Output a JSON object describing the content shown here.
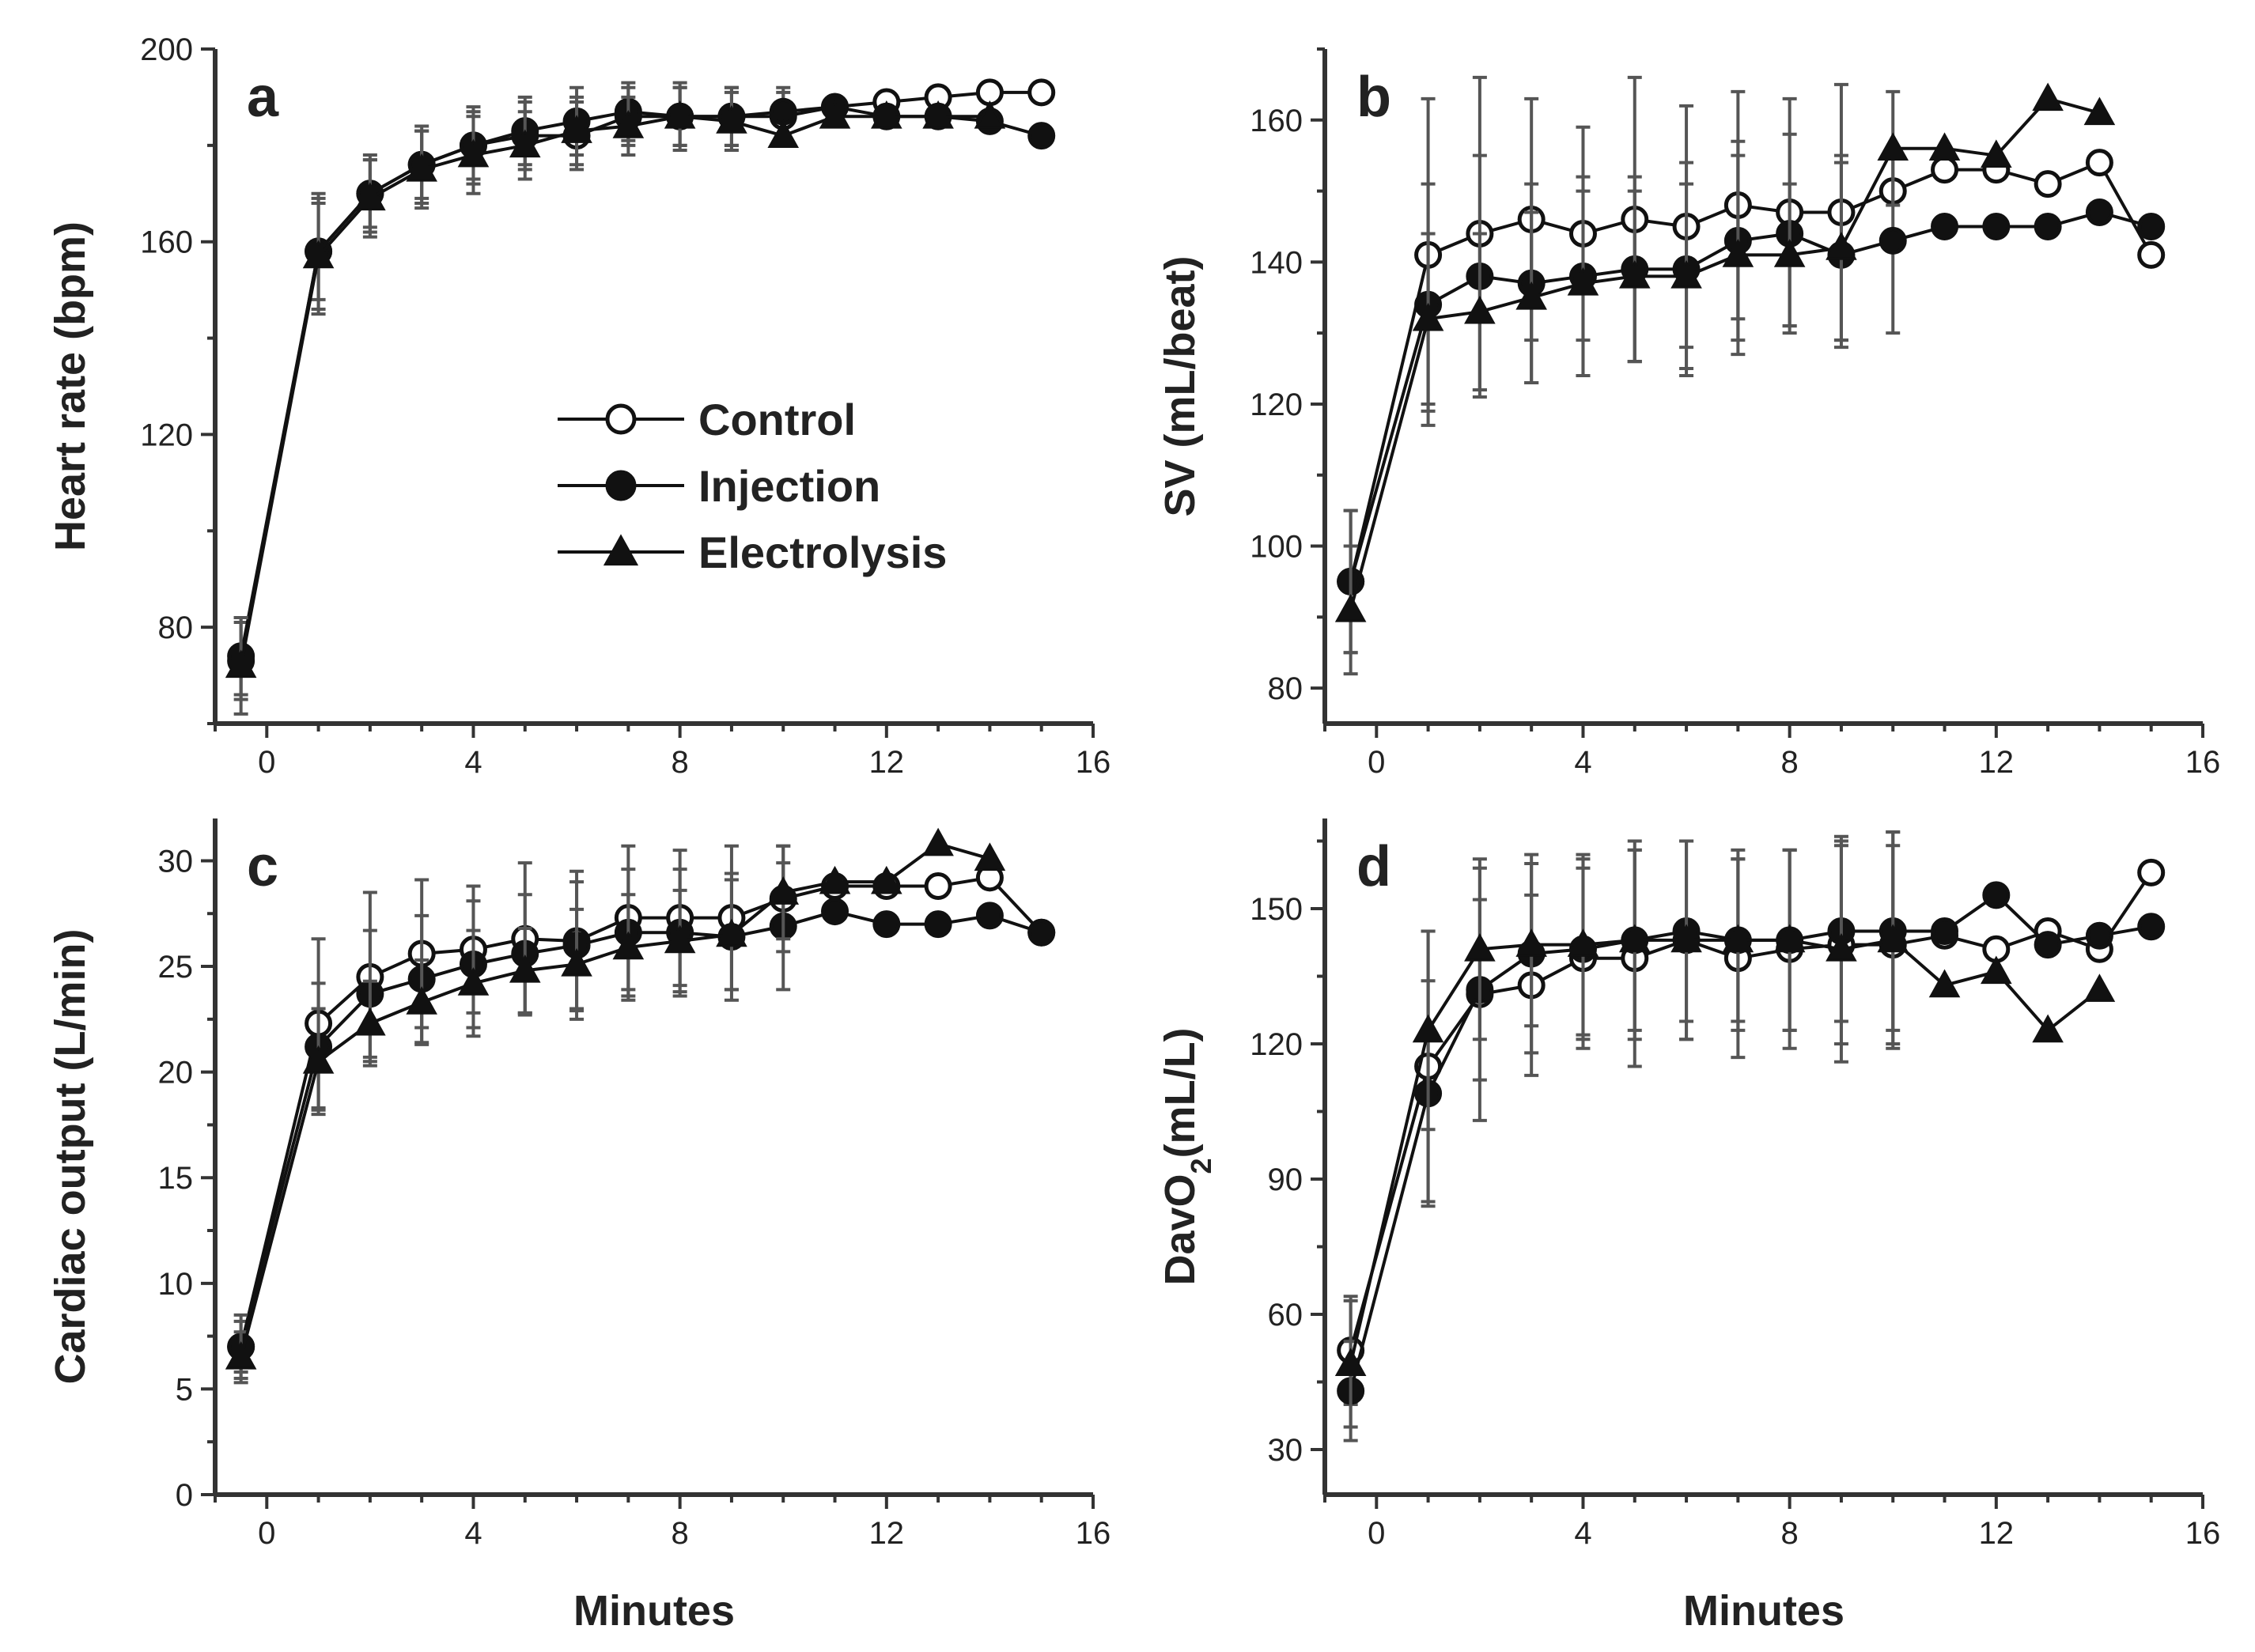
{
  "figure": {
    "x_axis_label": "Minutes",
    "legend": [
      {
        "label": "Control",
        "marker": "open-circle"
      },
      {
        "label": "Injection",
        "marker": "filled-circle"
      },
      {
        "label": "Electrolysis",
        "marker": "filled-triangle"
      }
    ]
  },
  "colors": {
    "line": "#111111",
    "errorbar": "#555555",
    "axis": "#333333",
    "marker_open_fill": "#ffffff"
  },
  "chart_data": [
    {
      "id": "a",
      "type": "line",
      "panel_letter": "a",
      "ylabel": "Heart rate (bpm)",
      "xlabel": "",
      "xlim": [
        -1,
        16
      ],
      "ylim": [
        60,
        200
      ],
      "xticks": [
        0,
        4,
        8,
        12,
        16
      ],
      "yticks": [
        80,
        120,
        160,
        200
      ],
      "show_legend": true,
      "legend_position": "center",
      "grid": false,
      "series": [
        {
          "name": "Control",
          "marker": "open-circle",
          "x": [
            -0.5,
            1,
            2,
            3,
            4,
            5,
            6,
            7,
            8,
            9,
            10,
            11,
            12,
            13,
            14,
            15
          ],
          "y": [
            73,
            158,
            170,
            176,
            180,
            182,
            182,
            186,
            186,
            186,
            186,
            188,
            189,
            190,
            191,
            191
          ],
          "err": [
            8,
            10,
            7,
            7,
            7,
            7,
            7,
            6,
            6,
            6,
            5,
            0,
            0,
            0,
            0,
            0
          ]
        },
        {
          "name": "Injection",
          "marker": "filled-circle",
          "x": [
            -0.5,
            1,
            2,
            3,
            4,
            5,
            6,
            7,
            8,
            9,
            10,
            11,
            12,
            13,
            14,
            15
          ],
          "y": [
            74,
            158,
            170,
            176,
            180,
            183,
            185,
            187,
            186,
            186,
            187,
            188,
            186,
            186,
            185,
            182
          ],
          "err": [
            8,
            12,
            8,
            8,
            8,
            7,
            7,
            6,
            7,
            6,
            5,
            0,
            0,
            0,
            0,
            0
          ]
        },
        {
          "name": "Electrolysis",
          "marker": "filled-triangle",
          "x": [
            -0.5,
            1,
            2,
            3,
            4,
            5,
            6,
            7,
            8,
            9,
            10,
            11,
            12,
            13,
            14
          ],
          "y": [
            72,
            157,
            169,
            175,
            178,
            180,
            183,
            184,
            186,
            185,
            182,
            186,
            186,
            186,
            186
          ],
          "err": [
            10,
            12,
            8,
            8,
            8,
            7,
            7,
            6,
            6,
            6,
            0,
            0,
            0,
            0,
            0
          ]
        }
      ]
    },
    {
      "id": "b",
      "type": "line",
      "panel_letter": "b",
      "ylabel": "SV (mL/beat)",
      "xlabel": "",
      "xlim": [
        -1,
        16
      ],
      "ylim": [
        75,
        170
      ],
      "xticks": [
        0,
        4,
        8,
        12,
        16
      ],
      "yticks": [
        80,
        100,
        120,
        140,
        160
      ],
      "show_legend": false,
      "grid": false,
      "series": [
        {
          "name": "Control",
          "marker": "open-circle",
          "x": [
            -0.5,
            1,
            2,
            3,
            4,
            5,
            6,
            7,
            8,
            9,
            10,
            11,
            12,
            13,
            14,
            15
          ],
          "y": [
            95,
            141,
            144,
            146,
            144,
            146,
            145,
            148,
            147,
            147,
            150,
            153,
            153,
            151,
            154,
            141
          ],
          "err": [
            10,
            22,
            22,
            17,
            15,
            20,
            17,
            16,
            16,
            18,
            0,
            0,
            0,
            0,
            0,
            0
          ]
        },
        {
          "name": "Injection",
          "marker": "filled-circle",
          "x": [
            -0.5,
            1,
            2,
            3,
            4,
            5,
            6,
            7,
            8,
            9,
            10,
            11,
            12,
            13,
            14,
            15
          ],
          "y": [
            95,
            134,
            138,
            137,
            138,
            139,
            139,
            143,
            144,
            141,
            143,
            145,
            145,
            145,
            147,
            145
          ],
          "err": [
            10,
            17,
            17,
            14,
            14,
            13,
            15,
            14,
            14,
            13,
            13,
            0,
            0,
            0,
            0,
            0
          ]
        },
        {
          "name": "Electrolysis",
          "marker": "filled-triangle",
          "x": [
            -0.5,
            1,
            2,
            3,
            4,
            5,
            6,
            7,
            8,
            9,
            10,
            11,
            12,
            13,
            14
          ],
          "y": [
            91,
            132,
            133,
            135,
            137,
            138,
            138,
            141,
            141,
            142,
            156,
            156,
            155,
            163,
            161
          ],
          "err": [
            9,
            12,
            11,
            12,
            13,
            12,
            13,
            14,
            10,
            13,
            8,
            0,
            0,
            0,
            0
          ]
        }
      ]
    },
    {
      "id": "c",
      "type": "line",
      "panel_letter": "c",
      "ylabel": "Cardiac output (L/min)",
      "xlabel": "Minutes",
      "xlim": [
        -1,
        16
      ],
      "ylim": [
        0,
        32
      ],
      "xticks": [
        0,
        4,
        8,
        12,
        16
      ],
      "yticks": [
        0,
        5,
        10,
        15,
        20,
        25,
        30
      ],
      "show_legend": false,
      "grid": false,
      "series": [
        {
          "name": "Control",
          "marker": "open-circle",
          "x": [
            -0.5,
            1,
            2,
            3,
            4,
            5,
            6,
            7,
            8,
            9,
            10,
            11,
            12,
            13,
            14,
            15
          ],
          "y": [
            7,
            22.3,
            24.5,
            25.6,
            25.8,
            26.3,
            26.2,
            27.3,
            27.3,
            27.3,
            28.2,
            28.8,
            28.8,
            28.8,
            29.2,
            26.6
          ],
          "err": [
            1.2,
            4,
            4,
            3.5,
            3,
            3.6,
            3.3,
            3.4,
            3.2,
            3.4,
            2.5,
            0,
            0,
            0,
            0,
            0
          ]
        },
        {
          "name": "Injection",
          "marker": "filled-circle",
          "x": [
            -0.5,
            1,
            2,
            3,
            4,
            5,
            6,
            7,
            8,
            9,
            10,
            11,
            12,
            13,
            14,
            15
          ],
          "y": [
            7,
            21.2,
            23.7,
            24.4,
            25.1,
            25.6,
            26,
            26.6,
            26.6,
            26.4,
            26.9,
            27.6,
            27,
            27,
            27.4,
            26.6
          ],
          "err": [
            1.5,
            3,
            3,
            3,
            3,
            2.8,
            3,
            3,
            3,
            3,
            3,
            0,
            0,
            0,
            0,
            0
          ]
        },
        {
          "name": "Electrolysis",
          "marker": "filled-triangle",
          "x": [
            -0.5,
            1,
            2,
            3,
            4,
            5,
            6,
            7,
            8,
            9,
            10,
            11,
            12,
            13,
            14
          ],
          "y": [
            6.5,
            20.5,
            22.3,
            23.3,
            24.2,
            24.8,
            25.1,
            25.9,
            26.2,
            26.5,
            28.5,
            29,
            29,
            30.8,
            30.1
          ],
          "err": [
            1.2,
            2.5,
            2,
            2,
            2.5,
            2,
            2.6,
            2.5,
            2.4,
            2.6,
            2.2,
            0,
            0,
            0,
            0
          ]
        }
      ]
    },
    {
      "id": "d",
      "type": "line",
      "panel_letter": "d",
      "ylabel": "DavO2(mL/L)",
      "xlabel": "Minutes",
      "xlim": [
        -1,
        16
      ],
      "ylim": [
        20,
        170
      ],
      "xticks": [
        0,
        4,
        8,
        12,
        16
      ],
      "yticks": [
        30,
        60,
        90,
        120,
        150
      ],
      "show_legend": false,
      "grid": false,
      "series": [
        {
          "name": "Control",
          "marker": "open-circle",
          "x": [
            -0.5,
            1,
            2,
            3,
            4,
            5,
            6,
            7,
            8,
            9,
            10,
            11,
            12,
            13,
            14,
            15
          ],
          "y": [
            52,
            115,
            131,
            133,
            139,
            139,
            143,
            139,
            141,
            142,
            142,
            144,
            141,
            145,
            141,
            158
          ],
          "err": [
            12,
            30,
            28,
            20,
            20,
            24,
            22,
            22,
            22,
            22,
            22,
            0,
            0,
            0,
            0,
            0
          ]
        },
        {
          "name": "Injection",
          "marker": "filled-circle",
          "x": [
            -0.5,
            1,
            2,
            3,
            4,
            5,
            6,
            7,
            8,
            9,
            10,
            11,
            12,
            13,
            14,
            15
          ],
          "y": [
            43,
            109,
            132,
            140,
            141,
            143,
            145,
            143,
            143,
            145,
            145,
            145,
            153,
            142,
            144,
            146
          ],
          "err": [
            11,
            25,
            20,
            22,
            20,
            20,
            20,
            18,
            20,
            20,
            22,
            0,
            0,
            0,
            0,
            0
          ]
        },
        {
          "name": "Electrolysis",
          "marker": "filled-triangle",
          "x": [
            -0.5,
            1,
            2,
            3,
            4,
            5,
            6,
            7,
            8,
            9,
            10,
            11,
            12,
            13,
            14
          ],
          "y": [
            49,
            123,
            141,
            142,
            142,
            143,
            143,
            143,
            143,
            141,
            143,
            133,
            136,
            123,
            132
          ],
          "err": [
            14,
            22,
            20,
            18,
            20,
            22,
            22,
            20,
            20,
            25,
            24,
            0,
            0,
            0,
            0
          ]
        }
      ]
    }
  ]
}
